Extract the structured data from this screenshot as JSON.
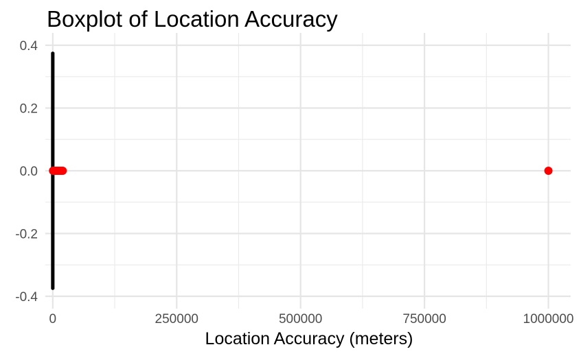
{
  "chart_data": {
    "type": "boxplot",
    "title": "Boxplot of Location Accuracy",
    "xlabel": "Location Accuracy (meters)",
    "ylabel": "",
    "orientation": "horizontal",
    "xlim": [
      -15000,
      1045000
    ],
    "ylim": [
      -0.4,
      0.4
    ],
    "x_ticks": [
      0,
      250000,
      500000,
      750000,
      1000000
    ],
    "x_tick_labels": [
      "0",
      "250000",
      "500000",
      "750000",
      "1000000"
    ],
    "x_minor_ticks": [
      125000,
      375000,
      625000,
      875000
    ],
    "y_ticks": [
      0.4,
      0.2,
      0.0,
      -0.2,
      -0.4
    ],
    "y_tick_labels": [
      "0.4",
      "0.2",
      "0.0",
      "-0.2",
      "-0.4"
    ],
    "y_minor_ticks": [
      0.3,
      0.1,
      -0.1,
      -0.3
    ],
    "grid": true,
    "box": {
      "y_center": 0.0,
      "y_half_width": 0.375,
      "x_min": 0,
      "q1": 0,
      "median": 0,
      "q3": 0,
      "x_max": 100,
      "color": "#000000"
    },
    "outliers": {
      "color": "#ff0000",
      "y": 0.0,
      "x": [
        500,
        1000,
        1500,
        2000,
        2500,
        3000,
        4000,
        5000,
        6000,
        7000,
        8000,
        9000,
        10000,
        11000,
        12000,
        13000,
        14000,
        15000,
        16000,
        17000,
        18000,
        19000,
        20000,
        1000000
      ]
    }
  }
}
